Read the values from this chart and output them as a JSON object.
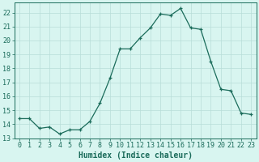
{
  "x": [
    0,
    1,
    2,
    3,
    4,
    5,
    6,
    7,
    8,
    9,
    10,
    11,
    12,
    13,
    14,
    15,
    16,
    17,
    18,
    19,
    20,
    21,
    22,
    23
  ],
  "y": [
    14.4,
    14.4,
    13.7,
    13.8,
    13.3,
    13.6,
    13.6,
    14.2,
    15.5,
    17.3,
    19.4,
    19.4,
    20.2,
    20.9,
    21.9,
    21.8,
    22.3,
    20.9,
    20.8,
    18.5,
    16.5,
    16.4,
    14.8,
    14.7
  ],
  "xlabel": "Humidex (Indice chaleur)",
  "line_color": "#1a6b5a",
  "marker": "+",
  "bg_color": "#d8f5f0",
  "grid_color": "#b8ddd8",
  "ylim": [
    13.0,
    22.7
  ],
  "xlim": [
    -0.5,
    23.5
  ],
  "yticks": [
    13,
    14,
    15,
    16,
    17,
    18,
    19,
    20,
    21,
    22
  ],
  "xticks": [
    0,
    1,
    2,
    3,
    4,
    5,
    6,
    7,
    8,
    9,
    10,
    11,
    12,
    13,
    14,
    15,
    16,
    17,
    18,
    19,
    20,
    21,
    22,
    23
  ],
  "tick_color": "#1a6b5a",
  "xlabel_fontsize": 7,
  "tick_fontsize": 6,
  "figwidth": 3.2,
  "figheight": 2.0,
  "dpi": 100
}
